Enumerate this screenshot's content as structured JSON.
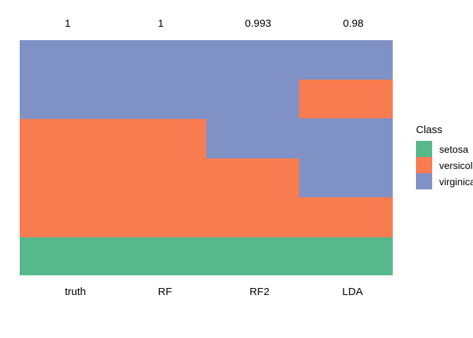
{
  "chart_data": {
    "type": "heatmap",
    "title": "",
    "xlabel": "",
    "ylabel": "",
    "layout": {
      "legend_position": "right",
      "grid": false,
      "axes_visible": false,
      "background": "#ffffff"
    },
    "class_colors": {
      "setosa": "#55B98C",
      "versicolor": "#F97C51",
      "virginica": "#8091C5"
    },
    "columns": [
      {
        "label": "truth",
        "score": "1",
        "segments": [
          {
            "class": "virginica",
            "frac": 0.335
          },
          {
            "class": "versicolor",
            "frac": 0.503
          },
          {
            "class": "setosa",
            "frac": 0.162
          }
        ]
      },
      {
        "label": "RF",
        "score": "1",
        "segments": [
          {
            "class": "virginica",
            "frac": 0.335
          },
          {
            "class": "versicolor",
            "frac": 0.503
          },
          {
            "class": "setosa",
            "frac": 0.162
          }
        ]
      },
      {
        "label": "RF2",
        "score": "0.993",
        "segments": [
          {
            "class": "virginica",
            "frac": 0.503
          },
          {
            "class": "versicolor",
            "frac": 0.335
          },
          {
            "class": "setosa",
            "frac": 0.162
          }
        ]
      },
      {
        "label": "LDA",
        "score": "0.98",
        "segments": [
          {
            "class": "virginica",
            "frac": 0.168
          },
          {
            "class": "versicolor",
            "frac": 0.164
          },
          {
            "class": "virginica",
            "frac": 0.335
          },
          {
            "class": "versicolor",
            "frac": 0.171
          },
          {
            "class": "setosa",
            "frac": 0.162
          }
        ]
      }
    ],
    "legend": {
      "title": "Class",
      "entries": [
        {
          "label": "setosa",
          "color": "#55B98C"
        },
        {
          "label": "versicolor",
          "color": "#F97C51"
        },
        {
          "label": "virginica",
          "color": "#8091C5"
        }
      ]
    }
  }
}
